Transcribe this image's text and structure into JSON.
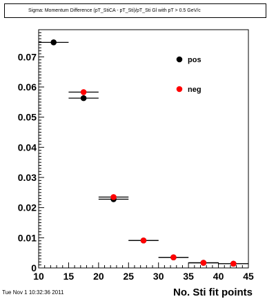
{
  "title": "Sigma: Momentum Difference (pT_StiCA - pT_Sti)/pT_Sti Gl with pT > 0.5 GeV/c",
  "timestamp": "Tue Nov  1 10:32:36 2011",
  "chart_data": {
    "type": "scatter",
    "title": "Sigma: Momentum Difference (pT_StiCA - pT_Sti)/pT_Sti Gl with pT > 0.5 GeV/c",
    "xlabel": "No. Sti fit points",
    "ylabel": "",
    "xlim": [
      10,
      45
    ],
    "ylim": [
      0,
      0.079
    ],
    "xticks": [
      10,
      15,
      20,
      25,
      30,
      35,
      40,
      45
    ],
    "yticks": [
      0,
      0.01,
      0.02,
      0.03,
      0.04,
      0.05,
      0.06,
      0.07
    ],
    "ytick_labels": [
      "0",
      "0.01",
      "0.02",
      "0.03",
      "0.04",
      "0.05",
      "0.06",
      "0.07"
    ],
    "bin_half_width": 2.5,
    "legend_position": "top-right",
    "grid": false,
    "series": [
      {
        "name": "pos",
        "color": "#000000",
        "x": [
          12.5,
          17.5,
          22.5,
          27.5,
          32.5,
          37.5,
          42.5
        ],
        "values": [
          0.0748,
          0.0563,
          0.0228,
          0.0091,
          0.0035,
          0.0017,
          0.0014
        ]
      },
      {
        "name": "neg",
        "color": "#ff0000",
        "x": [
          17.5,
          22.5,
          27.5,
          32.5,
          37.5,
          42.5
        ],
        "values": [
          0.0583,
          0.0235,
          0.0091,
          0.0035,
          0.0017,
          0.0014
        ]
      }
    ]
  }
}
